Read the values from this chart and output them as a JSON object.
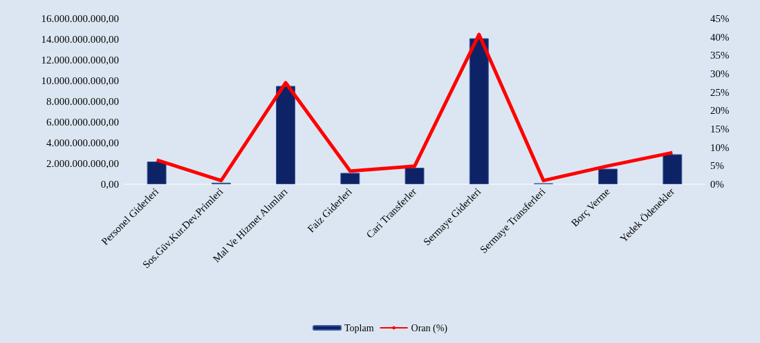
{
  "chart_data": {
    "type": "bar",
    "categories": [
      "Personel Giderleri",
      "Sos.Güv.Kur.Dev.Primleri",
      "Mal Ve Hizmet Alımları",
      "Faiz Giderleri",
      "Cari Transferler",
      "Sermaye Giderleri",
      "Sermaye Transferleri",
      "Borç Verme",
      "Yedek Ödenekler"
    ],
    "series": [
      {
        "name": "Toplam",
        "color": "#0d2366",
        "values": [
          2200000000,
          150000000,
          9500000000,
          1100000000,
          1600000000,
          14100000000,
          100000000,
          1500000000,
          2900000000
        ]
      },
      {
        "name": "Oran (%)",
        "type": "line",
        "axis": "y2",
        "color": "#ff0000",
        "values": [
          6.6,
          1,
          27.6,
          3.6,
          4.9,
          40.7,
          1,
          5,
          8.6
        ]
      }
    ],
    "ylim": [
      0,
      16000000000
    ],
    "yticks": [
      {
        "value": 0,
        "label": "0,00"
      },
      {
        "value": 2000000000,
        "label": "2.000.000.000,00"
      },
      {
        "value": 4000000000,
        "label": "4.000.000.000,00"
      },
      {
        "value": 6000000000,
        "label": "6.000.000.000,00"
      },
      {
        "value": 8000000000,
        "label": "8.000.000.000,00"
      },
      {
        "value": 10000000000,
        "label": "10.000.000.000,00"
      },
      {
        "value": 12000000000,
        "label": "12.000.000.000,00"
      },
      {
        "value": 14000000000,
        "label": "14.000.000.000,00"
      },
      {
        "value": 16000000000,
        "label": "16.000.000.000,00"
      }
    ],
    "y2lim": [
      0,
      45
    ],
    "y2ticks": [
      {
        "value": 0,
        "label": "0%"
      },
      {
        "value": 5,
        "label": "5%"
      },
      {
        "value": 10,
        "label": "10%"
      },
      {
        "value": 15,
        "label": "15%"
      },
      {
        "value": 20,
        "label": "20%"
      },
      {
        "value": 25,
        "label": "25%"
      },
      {
        "value": 30,
        "label": "30%"
      },
      {
        "value": 35,
        "label": "35%"
      },
      {
        "value": 40,
        "label": "40%"
      },
      {
        "value": 45,
        "label": "45%"
      }
    ],
    "legend": "bottom",
    "marker": "none"
  }
}
